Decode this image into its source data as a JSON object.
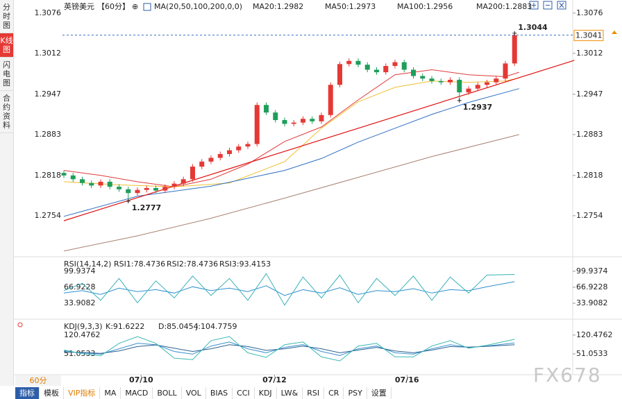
{
  "sidebar_tabs": [
    "分时图",
    "K线图",
    "闪电图",
    "合约资料"
  ],
  "period_select": "60分",
  "toolbar": [
    "指标",
    "模板",
    "VIP指标",
    "MA",
    "MACD",
    "BOLL",
    "VOL",
    "BIAS",
    "CCI",
    "KDJ",
    "LW&",
    "RSI",
    "CR",
    "PSY",
    "设置"
  ],
  "watermark": "FX678",
  "chart_data": [
    {
      "type": "candlestick",
      "title": "英镑美元",
      "period": "【60分】",
      "label": "MA(20,50,100,200,0,0)",
      "legend": [
        {
          "label": "MA20:1.2982",
          "color": "#e03a3a"
        },
        {
          "label": "MA50:1.2973",
          "color": "#f0c030"
        },
        {
          "label": "MA100:1.2956",
          "color": "#2f6fc0"
        },
        {
          "label": "MA200:1.2883",
          "color": "#a98070"
        }
      ],
      "ylim": [
        1.2691,
        1.3088
      ],
      "yticks": [
        1.3076,
        1.3012,
        1.2947,
        1.2883,
        1.2818,
        1.2754
      ],
      "xticks": [
        {
          "value": 8.4,
          "label": "07/10"
        },
        {
          "value": 22.9,
          "label": "07/12"
        },
        {
          "value": 37.3,
          "label": "07/16"
        }
      ],
      "up_color": "#e53935",
      "down_color": "#1e9e5a",
      "open": [
        1.2822,
        1.2818,
        1.2812,
        1.2806,
        1.2802,
        1.2808,
        1.28,
        1.2796,
        1.279,
        1.2795,
        1.2798,
        1.2794,
        1.28,
        1.2805,
        1.2812,
        1.2832,
        1.284,
        1.2846,
        1.2852,
        1.2858,
        1.2864,
        1.2868,
        1.293,
        1.2918,
        1.2906,
        1.29,
        1.2902,
        1.2908,
        1.2904,
        1.2914,
        1.2962,
        1.2995,
        1.3,
        1.2994,
        1.2986,
        1.2982,
        1.2992,
        1.2998,
        1.2986,
        1.2976,
        1.2972,
        1.2968,
        1.2966,
        1.297,
        1.295,
        1.2956,
        1.2962,
        1.2966,
        1.2972,
        1.2996
      ],
      "high": [
        1.2826,
        1.2822,
        1.2816,
        1.281,
        1.2812,
        1.2812,
        1.2804,
        1.28,
        1.2799,
        1.2802,
        1.2802,
        1.2804,
        1.2809,
        1.2816,
        1.2836,
        1.2844,
        1.285,
        1.2856,
        1.2862,
        1.2868,
        1.2872,
        1.2934,
        1.2934,
        1.2922,
        1.291,
        1.2906,
        1.2912,
        1.2912,
        1.2918,
        1.2966,
        1.2999,
        1.3004,
        1.3004,
        1.2998,
        1.299,
        1.2996,
        1.3002,
        1.3002,
        1.299,
        1.298,
        1.2976,
        1.2972,
        1.2974,
        1.2974,
        1.296,
        1.2966,
        1.297,
        1.2976,
        1.3,
        1.3044
      ],
      "low": [
        1.2814,
        1.2808,
        1.2802,
        1.2798,
        1.2798,
        1.2796,
        1.2792,
        1.2777,
        1.2786,
        1.2791,
        1.279,
        1.279,
        1.2796,
        1.2801,
        1.2808,
        1.2828,
        1.2836,
        1.2842,
        1.2848,
        1.2854,
        1.286,
        1.2864,
        1.2914,
        1.2902,
        1.2896,
        1.2896,
        1.2898,
        1.29,
        1.29,
        1.291,
        1.2958,
        1.2991,
        1.299,
        1.2982,
        1.2978,
        1.2978,
        1.2988,
        1.2982,
        1.2972,
        1.2968,
        1.2964,
        1.2962,
        1.2962,
        1.2937,
        1.2946,
        1.2952,
        1.2958,
        1.2962,
        1.2968,
        1.2992
      ],
      "close": [
        1.2818,
        1.2812,
        1.2806,
        1.2802,
        1.2808,
        1.28,
        1.2796,
        1.279,
        1.2795,
        1.2798,
        1.2794,
        1.28,
        1.2805,
        1.2812,
        1.2832,
        1.284,
        1.2846,
        1.2852,
        1.2858,
        1.2864,
        1.2868,
        1.293,
        1.2918,
        1.2906,
        1.29,
        1.2902,
        1.2908,
        1.2904,
        1.2914,
        1.2962,
        1.2995,
        1.3,
        1.2994,
        1.2986,
        1.2982,
        1.2992,
        1.2998,
        1.2986,
        1.2976,
        1.2972,
        1.2968,
        1.2966,
        1.297,
        1.295,
        1.2956,
        1.2962,
        1.2966,
        1.2972,
        1.2996,
        1.3041
      ],
      "series": [
        {
          "color": "#e03a3a",
          "x": [
            0,
            4,
            8,
            12,
            16,
            20,
            24,
            28,
            32,
            36,
            40,
            44,
            48,
            49.5
          ],
          "values": [
            1.2826,
            1.2818,
            1.2808,
            1.28,
            1.2812,
            1.2836,
            1.2872,
            1.2895,
            1.2938,
            1.2978,
            1.2986,
            1.2978,
            1.2975,
            1.2982
          ]
        },
        {
          "color": "#f0c030",
          "x": [
            0,
            6,
            12,
            18,
            24,
            28,
            32,
            36,
            40,
            44,
            48,
            49.5
          ],
          "values": [
            1.2808,
            1.2803,
            1.28,
            1.2806,
            1.284,
            1.2893,
            1.2935,
            1.2958,
            1.2968,
            1.2966,
            1.2968,
            1.2973
          ]
        },
        {
          "color": "#2f6fc0",
          "x": [
            0,
            8,
            16,
            24,
            28,
            32,
            36,
            40,
            44,
            49.5
          ],
          "values": [
            1.2753,
            1.2785,
            1.2801,
            1.2826,
            1.2845,
            1.2871,
            1.2893,
            1.2915,
            1.2934,
            1.2956
          ]
        },
        {
          "color": "#a98070",
          "x": [
            0,
            8,
            16,
            24,
            32,
            40,
            49.5
          ],
          "values": [
            1.2698,
            1.2722,
            1.275,
            1.2782,
            1.2815,
            1.2848,
            1.2883
          ]
        }
      ],
      "trendline": {
        "color": "#e01010",
        "x": [
          0,
          55.5
        ],
        "values": [
          1.2746,
          1.3001
        ]
      },
      "last_price": 1.3041,
      "last_color": "#f08a00",
      "annotations": [
        {
          "x": 49,
          "value": 1.3044,
          "color": "#e53935",
          "side": "above"
        },
        {
          "x": 7,
          "value": 1.2777,
          "color": "#33a060",
          "side": "below"
        },
        {
          "x": 43,
          "value": 1.2937,
          "color": "#33a060",
          "side": "below"
        }
      ]
    },
    {
      "type": "line",
      "label": "RSI(14,14,2)",
      "legend": [
        {
          "label": "RSI1:78.4736",
          "color": "#2f8fcf"
        },
        {
          "label": "RSI2:78.4736",
          "color": "#2f8fcf"
        },
        {
          "label": "RSI3:93.4153",
          "color": "#39b0b8"
        }
      ],
      "ylim": [
        1,
        127
      ],
      "yticks": [
        99.9374,
        66.9228,
        33.9082
      ],
      "series": [
        {
          "color": "#2f8fcf",
          "x": [
            0,
            2,
            4,
            6,
            8,
            10,
            12,
            14,
            16,
            18,
            20,
            22,
            24,
            26,
            28,
            30,
            32,
            34,
            36,
            38,
            40,
            42,
            44,
            46,
            49
          ],
          "values": [
            55,
            60,
            52,
            65,
            58,
            62,
            55,
            68,
            60,
            65,
            58,
            70,
            50,
            62,
            55,
            66,
            52,
            60,
            58,
            64,
            55,
            62,
            60,
            68,
            78.5
          ]
        },
        {
          "color": "#39b0b8",
          "x": [
            0,
            2,
            4,
            6,
            8,
            10,
            12,
            14,
            16,
            18,
            20,
            22,
            24,
            26,
            28,
            30,
            32,
            34,
            36,
            38,
            40,
            42,
            44,
            46,
            49
          ],
          "values": [
            60,
            75,
            40,
            85,
            35,
            80,
            45,
            90,
            50,
            85,
            40,
            95,
            30,
            88,
            45,
            92,
            35,
            85,
            50,
            90,
            40,
            88,
            55,
            92,
            93.4
          ]
        }
      ]
    },
    {
      "type": "line",
      "label": "KDJ(9,3,3)",
      "legend": [
        {
          "label": "K:91.6222",
          "color": "#3a8fd0"
        },
        {
          "label": "D:85.0454",
          "color": "#2a6090"
        },
        {
          "label": "J:104.7759",
          "color": "#3ab8b0"
        }
      ],
      "ylim": [
        -26,
        174
      ],
      "yticks": [
        120.4762,
        51.0533
      ],
      "series": [
        {
          "color": "#3a8fd0",
          "x": [
            0,
            2,
            4,
            6,
            8,
            10,
            12,
            14,
            16,
            18,
            20,
            22,
            24,
            26,
            28,
            30,
            32,
            34,
            36,
            38,
            40,
            42,
            44,
            46,
            49
          ],
          "values": [
            60,
            55,
            50,
            70,
            90,
            85,
            60,
            50,
            80,
            95,
            70,
            55,
            75,
            85,
            60,
            45,
            70,
            80,
            55,
            50,
            70,
            85,
            75,
            80,
            91.6
          ]
        },
        {
          "color": "#2a6090",
          "x": [
            0,
            2,
            4,
            6,
            8,
            10,
            12,
            14,
            16,
            18,
            20,
            22,
            24,
            26,
            28,
            30,
            32,
            34,
            36,
            38,
            40,
            42,
            44,
            46,
            49
          ],
          "values": [
            58,
            56,
            53,
            62,
            78,
            84,
            72,
            60,
            70,
            85,
            78,
            64,
            70,
            80,
            70,
            55,
            65,
            75,
            62,
            55,
            65,
            78,
            76,
            79,
            85.0
          ]
        },
        {
          "color": "#3ab8b0",
          "x": [
            0,
            2,
            4,
            6,
            8,
            10,
            12,
            14,
            16,
            18,
            20,
            22,
            24,
            26,
            28,
            30,
            32,
            34,
            36,
            38,
            40,
            42,
            44,
            46,
            49
          ],
          "values": [
            65,
            52,
            44,
            90,
            115,
            90,
            35,
            30,
            100,
            115,
            55,
            38,
            85,
            95,
            40,
            25,
            80,
            90,
            40,
            40,
            80,
            100,
            72,
            83,
            104.8
          ]
        }
      ]
    }
  ]
}
